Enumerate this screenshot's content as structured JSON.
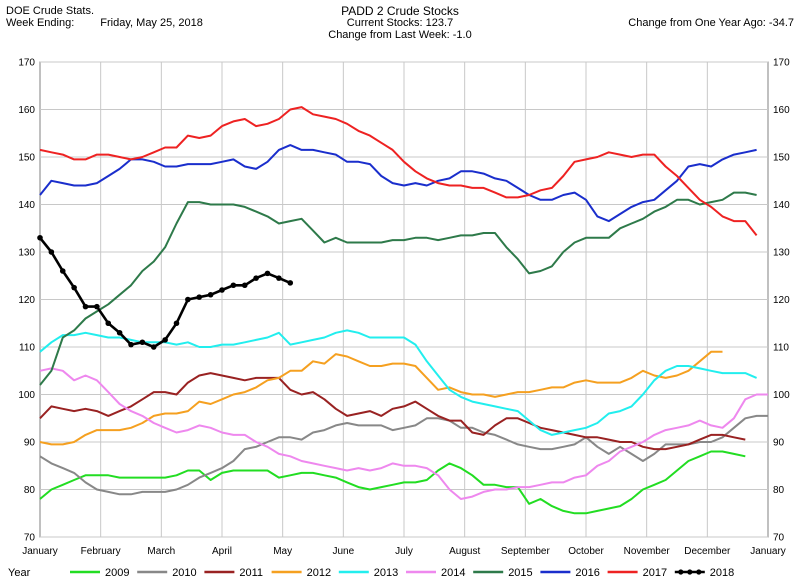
{
  "header": {
    "left_title": "DOE Crude Stats.",
    "week_ending_label": "Week Ending:",
    "week_ending_date": "Friday, May 25, 2018",
    "center_title": "PADD 2 Crude Stocks",
    "current_stocks": "Current Stocks: 123.7",
    "change_last_week": "Change from Last Week: -1.0",
    "change_year_ago": "Change from One Year Ago: -34.7"
  },
  "legend_title": "Year",
  "chart_data": {
    "type": "line",
    "title": "PADD 2 Crude Stocks",
    "ylim": [
      70,
      170
    ],
    "y_ticks": [
      70,
      80,
      90,
      100,
      110,
      120,
      130,
      140,
      150,
      160,
      170
    ],
    "x_tick_labels": [
      "January",
      "February",
      "March",
      "April",
      "May",
      "June",
      "July",
      "August",
      "September",
      "October",
      "November",
      "December",
      "January"
    ],
    "grid": true,
    "legend_position": "bottom",
    "series": [
      {
        "name": "2009",
        "color": "#22dd22",
        "values": [
          78,
          80,
          81,
          82,
          83,
          83,
          83,
          82.5,
          82.5,
          82.5,
          82.5,
          82.5,
          83,
          84,
          84,
          82,
          83.5,
          84,
          84,
          84,
          84,
          82.5,
          83,
          83.5,
          83.5,
          83,
          82.5,
          81.5,
          80.5,
          80,
          80.5,
          81,
          81.5,
          81.5,
          82,
          84,
          85.5,
          84.5,
          83,
          81,
          81,
          80.5,
          80.5,
          77,
          78,
          76.5,
          75.5,
          75,
          75,
          75.5,
          76,
          76.5,
          78,
          80,
          81,
          82,
          84,
          86,
          87,
          88,
          88,
          87.5,
          87
        ]
      },
      {
        "name": "2010",
        "color": "#888888",
        "values": [
          87,
          85.5,
          84.5,
          83.5,
          81.5,
          80,
          79.5,
          79,
          79,
          79.5,
          79.5,
          79.5,
          80,
          81,
          82.5,
          83.5,
          84.5,
          86,
          88.5,
          89,
          90,
          91,
          91,
          90.5,
          92,
          92.5,
          93.5,
          94,
          93.5,
          93.5,
          93.5,
          92.5,
          93,
          93.5,
          95,
          95,
          94.5,
          93,
          93,
          92,
          91.5,
          90.5,
          89.5,
          89,
          88.5,
          88.5,
          89,
          89.5,
          91,
          89,
          87.5,
          89,
          87.5,
          86,
          87.5,
          89.5,
          89.5,
          89.5,
          90,
          90,
          91,
          93,
          95,
          95.5,
          95.5
        ]
      },
      {
        "name": "2011",
        "color": "#992222",
        "values": [
          95,
          97.5,
          97,
          96.5,
          97,
          96.5,
          95.5,
          96.5,
          97.5,
          99,
          100.5,
          100.5,
          100,
          102.5,
          104,
          104.5,
          104,
          103.5,
          103,
          103.5,
          103.5,
          103.5,
          101,
          100,
          100.5,
          99,
          97,
          95.5,
          96,
          96.5,
          95.5,
          97,
          97.5,
          98.5,
          97,
          95.5,
          94.5,
          94.5,
          92,
          91.5,
          93.5,
          95,
          95,
          94,
          93,
          92.5,
          92,
          91.5,
          91,
          91,
          90.5,
          90,
          90,
          89,
          88.5,
          88.5,
          89,
          89.5,
          90.5,
          91.5,
          91.5,
          91,
          90.5
        ]
      },
      {
        "name": "2012",
        "color": "#f5a020",
        "values": [
          90,
          89.5,
          89.5,
          90,
          91.5,
          92.5,
          92.5,
          92.5,
          93,
          94,
          95.5,
          96,
          96,
          96.5,
          98.5,
          98,
          99,
          100,
          100.5,
          101.5,
          103,
          103.5,
          105,
          105,
          107,
          106.5,
          108.5,
          108,
          107,
          106,
          106,
          106.5,
          106.5,
          106,
          103.5,
          101,
          101.5,
          100.5,
          100,
          100,
          99.5,
          100,
          100.5,
          100.5,
          101,
          101.5,
          101.5,
          102.5,
          103,
          102.5,
          102.5,
          102.5,
          103.5,
          105,
          104,
          103.5,
          104,
          105,
          107,
          109,
          109
        ]
      },
      {
        "name": "2013",
        "color": "#22eeee",
        "values": [
          109,
          111,
          112.5,
          112.5,
          113,
          112.5,
          112,
          112,
          111.5,
          111,
          111,
          111,
          110.5,
          111,
          110,
          110,
          110.5,
          110.5,
          111,
          111.5,
          112,
          113,
          110.5,
          111,
          111.5,
          112,
          113,
          113.5,
          113,
          112,
          112,
          112,
          112,
          110.5,
          107,
          104,
          101,
          99.5,
          98.5,
          98,
          97.5,
          97,
          96.5,
          94.5,
          92.5,
          91.5,
          92,
          92.5,
          93,
          94,
          96,
          96.5,
          97.5,
          100,
          103,
          105,
          106,
          106,
          105.5,
          105,
          104.5,
          104.5,
          104.5,
          103.5
        ]
      },
      {
        "name": "2014",
        "color": "#ee88ee",
        "values": [
          105,
          105.5,
          105,
          103,
          104,
          103,
          100.5,
          98,
          96.5,
          95.5,
          94,
          93,
          92,
          92.5,
          93.5,
          93,
          92,
          91.5,
          91.5,
          90,
          89,
          87.5,
          87,
          86,
          85.5,
          85,
          84.5,
          84,
          84.5,
          84,
          84.5,
          85.5,
          85,
          85,
          84.5,
          83,
          80,
          78,
          78.5,
          79.5,
          80,
          80,
          80.5,
          80.5,
          81,
          81.5,
          81.5,
          82.5,
          83,
          85,
          86,
          88,
          89,
          90,
          91.5,
          92.5,
          93,
          93.5,
          94.5,
          93.5,
          93,
          95,
          99,
          100,
          100
        ]
      },
      {
        "name": "2015",
        "color": "#2e7a4a",
        "values": [
          102,
          105,
          112,
          113.5,
          116,
          117.5,
          119,
          121,
          123,
          126,
          128,
          131,
          136,
          140.5,
          140.5,
          140,
          140,
          140,
          139.5,
          138.5,
          137.5,
          136,
          136.5,
          137,
          134.5,
          132,
          133,
          132,
          132,
          132,
          132,
          132.5,
          132.5,
          133,
          133,
          132.5,
          133,
          133.5,
          133.5,
          134,
          134,
          131,
          128.5,
          125.5,
          126,
          127,
          130,
          132,
          133,
          133,
          133,
          135,
          136,
          137,
          138.5,
          139.5,
          141,
          141,
          140,
          140.5,
          141,
          142.5,
          142.5,
          142
        ]
      },
      {
        "name": "2016",
        "color": "#1a2ecc",
        "values": [
          142,
          145,
          144.5,
          144,
          144,
          144.5,
          146,
          147.5,
          149.5,
          149.5,
          149,
          148,
          148,
          148.5,
          148.5,
          148.5,
          149,
          149.5,
          148,
          147.5,
          149,
          151.5,
          152.5,
          151.5,
          151.5,
          151,
          150.5,
          149,
          149,
          148.5,
          146,
          144.5,
          144,
          144.5,
          144,
          145,
          145.5,
          147,
          147,
          146.5,
          145.5,
          145,
          143.5,
          142,
          141,
          141,
          142,
          142.5,
          141,
          137.5,
          136.5,
          138,
          139.5,
          140.5,
          141,
          143,
          145,
          148,
          148.5,
          148,
          149.5,
          150.5,
          151,
          151.5
        ]
      },
      {
        "name": "2017",
        "color": "#ee2222",
        "values": [
          151.5,
          151,
          150.5,
          149.5,
          149.5,
          150.5,
          150.5,
          150,
          149.5,
          150,
          151,
          152,
          152,
          154.5,
          154,
          154.5,
          156.5,
          157.5,
          158,
          156.5,
          157,
          158,
          160,
          160.5,
          159,
          158.5,
          158,
          157,
          155.5,
          154.5,
          153,
          151.5,
          149,
          147,
          145.5,
          144.5,
          144,
          144,
          143.5,
          143.5,
          142.5,
          141.5,
          141.5,
          142,
          143,
          143.5,
          146,
          149,
          149.5,
          150,
          151,
          150.5,
          150,
          150.5,
          150.5,
          148,
          146,
          143.5,
          141,
          139.5,
          137.5,
          136.5,
          136.5,
          133.5
        ]
      },
      {
        "name": "2018",
        "color": "#000000",
        "markers": true,
        "values": [
          133,
          130,
          126,
          122.5,
          118.5,
          118.5,
          115,
          113,
          110.5,
          111,
          110,
          111.5,
          115,
          120,
          120.5,
          121,
          122,
          123,
          123,
          124.5,
          125.5,
          124.5,
          123.5
        ]
      }
    ]
  }
}
